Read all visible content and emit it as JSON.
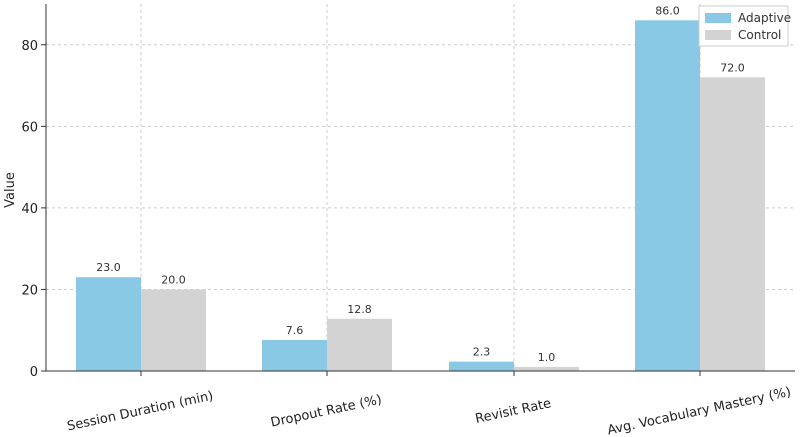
{
  "chart_data": {
    "type": "bar",
    "title": "",
    "xlabel": "",
    "ylabel": "Value",
    "ylim": [
      0,
      90
    ],
    "yticks": [
      0,
      20,
      40,
      60,
      80
    ],
    "grid": true,
    "legend_position": "top-right",
    "categories": [
      "Session Duration (min)",
      "Dropout Rate (%)",
      "Revisit Rate",
      "Avg. Vocabulary Mastery (%)"
    ],
    "series": [
      {
        "name": "Adaptive",
        "color": "#89c9e6",
        "values": [
          23.0,
          7.6,
          2.3,
          86.0
        ],
        "labels": [
          "23.0",
          "7.6",
          "2.3",
          "86.0"
        ]
      },
      {
        "name": "Control",
        "color": "#d3d3d3",
        "values": [
          20.0,
          12.8,
          1.0,
          72.0
        ],
        "labels": [
          "20.0",
          "12.8",
          "1.0",
          "72.0"
        ]
      }
    ]
  }
}
